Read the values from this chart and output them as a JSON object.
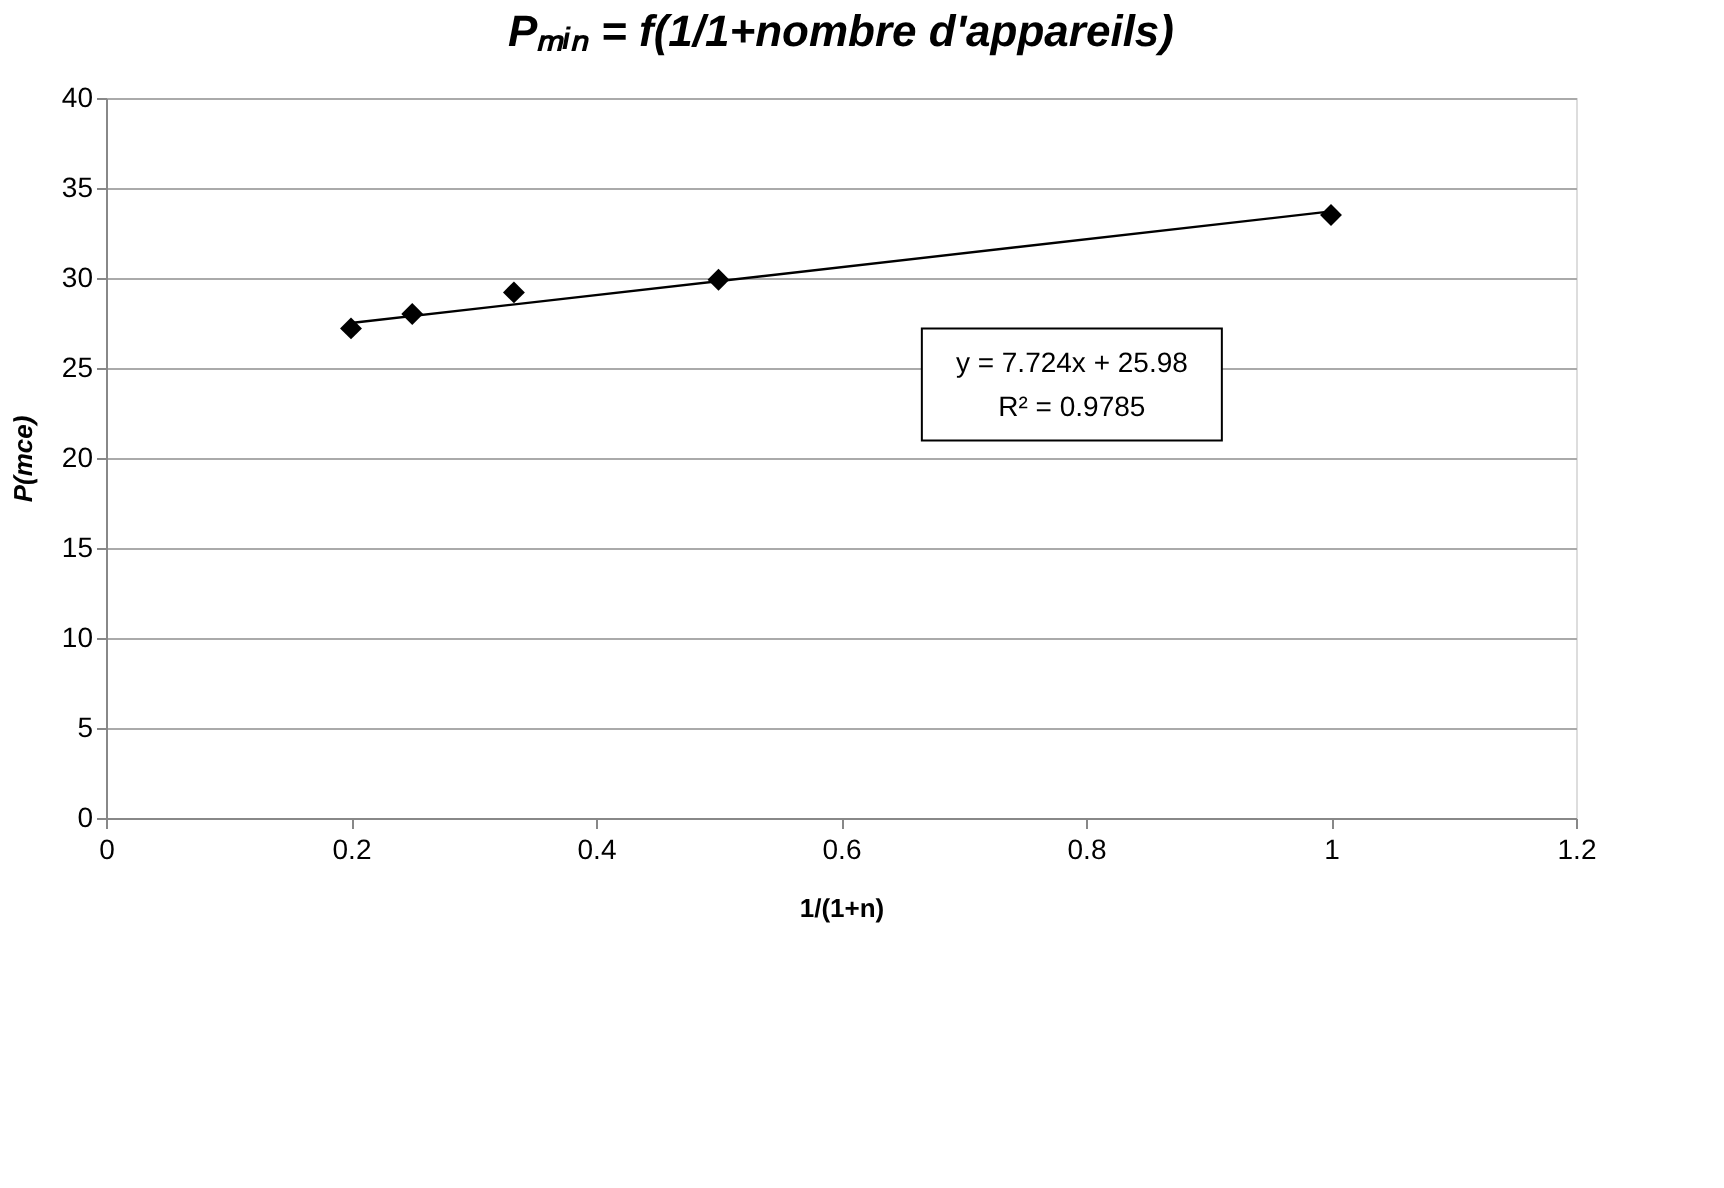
{
  "chart_data": {
    "type": "scatter",
    "title": "Pₘᵢₙ = f(1/1+nombre d'appareils)",
    "xlabel": "1/(1+n)",
    "ylabel": "P(mce)",
    "series": [
      {
        "color": "#000000",
        "marker": "diamond",
        "x": [
          0.2,
          0.25,
          0.333,
          0.5,
          1
        ],
        "values": [
          27.2,
          28.0,
          29.2,
          29.9,
          33.5
        ]
      },
      {
        "type": "line",
        "color": "#000000",
        "line_style": "solid",
        "x": [
          0.2,
          1
        ],
        "values": [
          27.5,
          33.7
        ]
      }
    ],
    "annotations": [
      "y = 7.724x + 25.98",
      "R² = 0.9785"
    ],
    "xlim": [
      0,
      1.2
    ],
    "xticks": [
      0,
      0.2,
      0.4,
      0.6,
      0.8,
      1,
      1.2
    ],
    "ylim": [
      0,
      40
    ],
    "yticks": [
      0,
      5,
      10,
      15,
      20,
      25,
      30,
      35,
      40
    ],
    "grid": "y"
  }
}
